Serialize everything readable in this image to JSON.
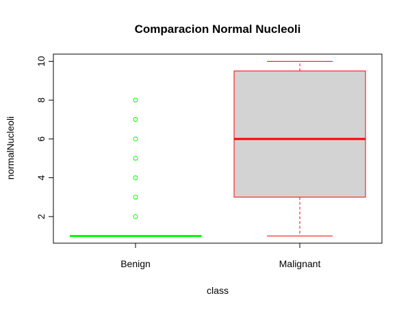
{
  "chart_data": {
    "type": "boxplot",
    "title": "Comparacion Normal Nucleoli",
    "xlabel": "class",
    "ylabel": "normalNucleoli",
    "categories": [
      "Benign",
      "Malignant"
    ],
    "ylim": [
      0.63,
      10.37
    ],
    "yticks": [
      2,
      4,
      6,
      8,
      10
    ],
    "grid": false,
    "legend": "none",
    "boxes": [
      {
        "name": "Benign",
        "color": "#00ff00",
        "fill": "#00ff00",
        "whisker_low": 1,
        "q1": 1,
        "median": 1,
        "q3": 1,
        "whisker_high": 1,
        "outliers": [
          2,
          3,
          4,
          5,
          6,
          7,
          8
        ]
      },
      {
        "name": "Malignant",
        "color": "#ff0000",
        "fill": "#d3d3d3",
        "whisker_low": 1,
        "q1": 3,
        "median": 6,
        "q3": 9.5,
        "whisker_high": 10,
        "outliers": []
      }
    ]
  }
}
